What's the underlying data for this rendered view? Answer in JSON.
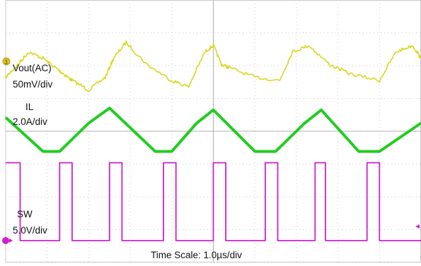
{
  "chart_data": {
    "type": "line",
    "title": "",
    "time_scale_label": "Time Scale: 1.0µs/div",
    "x_unit": "µs",
    "x_range": [
      0,
      10
    ],
    "grid": true,
    "channels": [
      {
        "name": "Vout(AC)",
        "scale_label": "50mV/div",
        "color": "#d8d820",
        "marker": "1",
        "x": [
          0.0,
          0.3,
          0.55,
          0.9,
          1.2,
          1.4,
          1.6,
          2.0,
          2.4,
          2.6,
          2.9,
          3.4,
          4.0,
          4.4,
          4.8,
          5.0,
          5.2,
          5.4,
          6.0,
          6.6,
          6.9,
          7.3,
          7.8,
          8.3,
          9.0,
          9.4,
          9.8,
          10.0
        ],
        "y": [
          -25,
          -5,
          15,
          5,
          -10,
          -20,
          -30,
          -45,
          -25,
          5,
          30,
          -5,
          -30,
          -40,
          15,
          25,
          -5,
          -10,
          -25,
          -30,
          15,
          25,
          -5,
          -20,
          -30,
          15,
          25,
          5
        ]
      },
      {
        "name": "IL",
        "scale_label": "2.0A/div",
        "color": "#22cc22",
        "x": [
          0.0,
          0.9,
          1.3,
          2.0,
          2.5,
          3.6,
          4.0,
          4.6,
          5.0,
          6.0,
          6.5,
          7.2,
          7.6,
          8.5,
          9.0,
          10.0
        ],
        "y": [
          4.7,
          2.9,
          2.9,
          4.4,
          5.2,
          2.9,
          2.9,
          4.4,
          5.1,
          2.9,
          2.9,
          4.4,
          5.1,
          2.9,
          2.9,
          4.4
        ]
      },
      {
        "name": "SW",
        "scale_label": "5.0V/div",
        "color": "#cc22cc",
        "marker": "→",
        "x": [
          0.0,
          0.35,
          0.35,
          1.3,
          1.3,
          1.6,
          1.6,
          2.5,
          2.5,
          2.8,
          2.8,
          3.8,
          3.8,
          4.1,
          4.1,
          5.0,
          5.0,
          5.3,
          5.3,
          6.25,
          6.25,
          6.55,
          6.55,
          7.45,
          7.45,
          7.7,
          7.7,
          8.7,
          8.7,
          9.0,
          9.0,
          10.0
        ],
        "y": [
          12,
          12,
          0,
          0,
          12,
          12,
          0,
          0,
          12,
          12,
          0,
          0,
          12,
          12,
          0,
          0,
          12,
          12,
          0,
          0,
          12,
          12,
          0,
          0,
          12,
          12,
          0,
          0,
          12,
          12,
          0,
          0
        ]
      }
    ]
  }
}
